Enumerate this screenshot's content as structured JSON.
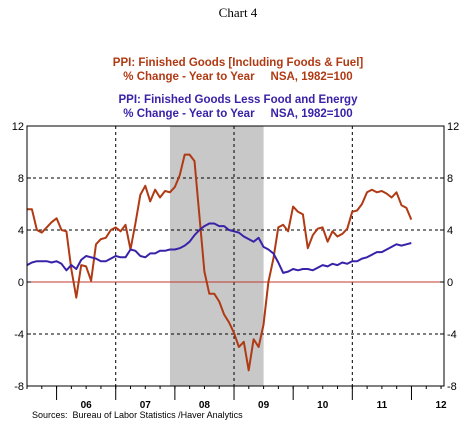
{
  "chart_caption": "Chart 4",
  "source_note": "Sources:  Bureau of Labor Statistics /Haver Analytics",
  "colors": {
    "series1": "#b03a14",
    "series2": "#3a22a8",
    "recession": "#c8c8c8",
    "zero_line": "#c0392b",
    "grid": "#000000"
  },
  "chart_data": {
    "type": "line",
    "x_unit": "year",
    "xlim": [
      2005.5,
      2012.55
    ],
    "ylim": [
      -8,
      12
    ],
    "yticks": [
      -8,
      -4,
      0,
      4,
      8,
      12
    ],
    "ytick_labels": [
      "-8",
      "-4",
      "0",
      "4",
      "8",
      "12"
    ],
    "xtick_labels": [
      {
        "label": "06",
        "x": 2006.5
      },
      {
        "label": "07",
        "x": 2007.5
      },
      {
        "label": "08",
        "x": 2008.5
      },
      {
        "label": "09",
        "x": 2009.5
      },
      {
        "label": "10",
        "x": 2010.5
      },
      {
        "label": "11",
        "x": 2011.5
      },
      {
        "label": "12",
        "x": 2012.5
      }
    ],
    "year_boundaries": [
      2006,
      2007,
      2008,
      2009,
      2010,
      2011,
      2012
    ],
    "vertical_dashed_at": [
      2007,
      2009,
      2011
    ],
    "recession_shading": [
      2007.917,
      2009.5
    ],
    "zero_line": 0,
    "grid_dashed_y": [
      -4,
      4,
      8
    ],
    "series": [
      {
        "name": "PPI: Finished Goods [Including Foods & Fuel]",
        "subtitle": "% Change - Year to Year     NSA, 1982=100",
        "color": "#b03a14",
        "x_start": 2005.5,
        "x_step": 0.0833,
        "values": [
          5.6,
          5.6,
          4.0,
          3.8,
          4.2,
          4.6,
          4.9,
          4.0,
          3.9,
          1.0,
          -1.2,
          1.3,
          1.2,
          0.1,
          2.9,
          3.3,
          3.4,
          4.0,
          4.2,
          3.9,
          4.4,
          2.5,
          4.5,
          6.7,
          7.4,
          6.2,
          7.1,
          6.5,
          7.0,
          6.9,
          7.3,
          8.2,
          9.8,
          9.8,
          9.3,
          5.1,
          0.8,
          -0.9,
          -0.9,
          -1.5,
          -2.5,
          -3.1,
          -3.9,
          -5.0,
          -4.6,
          -6.8,
          -4.4,
          -5.0,
          -3.3,
          0.0,
          1.8,
          4.2,
          4.4,
          3.9,
          5.8,
          5.4,
          5.2,
          2.6,
          3.6,
          4.1,
          4.2,
          3.1,
          3.9,
          3.5,
          3.7,
          4.1,
          5.4,
          5.5,
          6.0,
          6.9,
          7.1,
          6.9,
          7.0,
          6.8,
          6.5,
          6.9,
          5.9,
          5.7,
          4.8
        ]
      },
      {
        "name": "PPI: Finished Goods Less Food and Energy",
        "subtitle": "% Change - Year to Year     NSA, 1982=100",
        "color": "#3a22a8",
        "x_start": 2005.5,
        "x_step": 0.0833,
        "values": [
          1.3,
          1.5,
          1.6,
          1.6,
          1.6,
          1.5,
          1.6,
          1.4,
          0.9,
          1.3,
          1.0,
          1.7,
          2.0,
          1.9,
          1.8,
          1.6,
          1.6,
          1.8,
          2.0,
          1.9,
          1.9,
          2.5,
          2.4,
          2.0,
          1.9,
          2.2,
          2.2,
          2.4,
          2.4,
          2.5,
          2.5,
          2.6,
          2.8,
          3.1,
          3.6,
          4.0,
          4.3,
          4.5,
          4.5,
          4.3,
          4.3,
          4.0,
          3.9,
          3.8,
          3.5,
          3.3,
          3.1,
          3.4,
          2.7,
          2.5,
          2.2,
          1.5,
          0.7,
          0.8,
          1.0,
          0.9,
          1.0,
          1.0,
          0.9,
          1.1,
          1.3,
          1.2,
          1.4,
          1.3,
          1.5,
          1.4,
          1.6,
          1.6,
          1.8,
          1.9,
          2.1,
          2.3,
          2.3,
          2.5,
          2.7,
          2.9,
          2.8,
          2.9,
          3.0
        ]
      }
    ]
  }
}
